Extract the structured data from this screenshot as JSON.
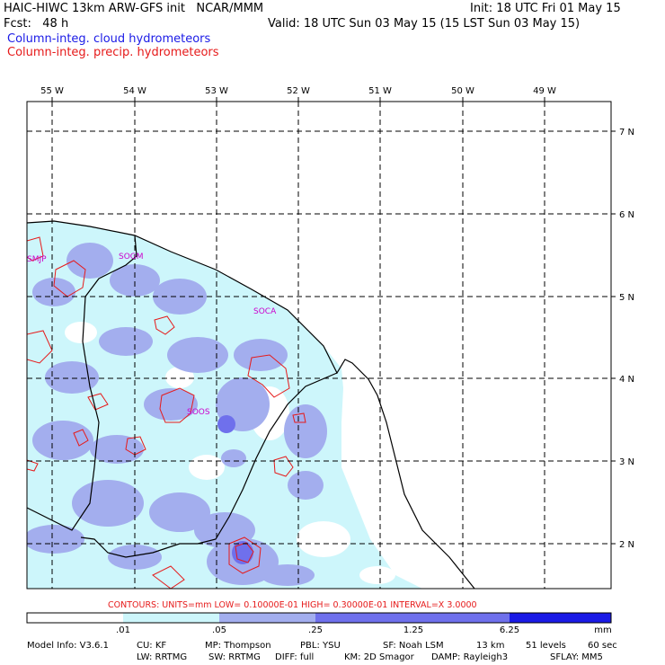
{
  "header": {
    "model_line": "HAIC-HIWC 13km ARW-GFS init   NCAR/MMM",
    "init": "Init: 18 UTC Fri 01 May 15",
    "fcst": "Fcst:   48 h",
    "valid": "Valid: 18 UTC Sun 03 May 15 (15 LST Sun 03 May 15)",
    "field_cloud": "Column-integ. cloud hydrometeors",
    "field_precip": "Column-integ. precip. hydrometeors"
  },
  "map": {
    "lon_labels": [
      "55 W",
      "54 W",
      "53 W",
      "52 W",
      "51 W",
      "50 W",
      "49 W"
    ],
    "lat_labels": [
      "7 N",
      "6 N",
      "5 N",
      "4 N",
      "3 N",
      "2 N"
    ],
    "stations": [
      "SMJP",
      "SOGM",
      "SOCA",
      "SOOS"
    ]
  },
  "contour_info": "CONTOURS:  UNITS=mm  LOW= 0.10000E-01  HIGH= 0.30000E-01  INTERVAL=X  3.0000",
  "colorbar": {
    "ticks": [
      ".01",
      ".05",
      ".25",
      "1.25",
      "6.25"
    ],
    "unit": "mm",
    "colors": [
      "#ffffff",
      "#cdf6fb",
      "#a3aeee",
      "#6f70ec",
      "#1a1ae6"
    ]
  },
  "footer": {
    "line1": [
      "Model Info: V3.6.1",
      "CU: KF",
      "MP: Thompson",
      "PBL: YSU",
      "SF: Noah LSM",
      "13 km",
      "51 levels",
      "60 sec"
    ],
    "line2": [
      "LW: RRTMG",
      "SW: RRTMG",
      "DIFF: full",
      "KM: 2D Smagor",
      "DAMP: Rayleigh3",
      "SFLAY: MM5"
    ]
  },
  "colors": {
    "cloud": "#1a1ae6",
    "precip": "#e61a1a",
    "station": "#cc00cc"
  }
}
